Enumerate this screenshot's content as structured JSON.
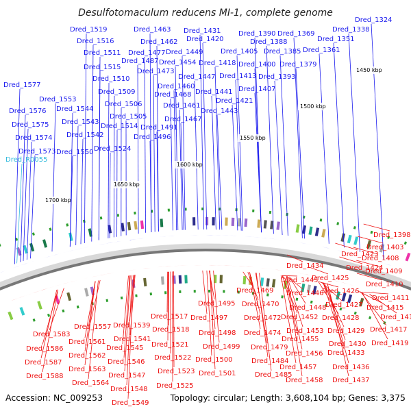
{
  "title": "Desulfotomaculum reducens MI-1, complete genome",
  "footer": {
    "accession": "Accession: NC_009253",
    "info": "Topology: circular; Length: 3,608,104 bp; Genes: 3,375"
  },
  "colors": {
    "forward": "#1a1aee",
    "reverse": "#ee1111",
    "rna": "#33bbdd",
    "backbone": "#777777",
    "tick": "#2e9e2e"
  },
  "kbp_ticks": [
    "1450 kbp",
    "1500 kbp",
    "1550 kbp",
    "1600 kbp",
    "1650 kbp",
    "1700 kbp"
  ],
  "top_labels": [
    [
      "Dred_1519",
      102,
      46
    ],
    [
      "Dred_1463",
      195,
      46
    ],
    [
      "Dred_1431",
      268,
      48
    ],
    [
      "Dred_1390",
      348,
      52
    ],
    [
      "Dred_1369",
      405,
      52
    ],
    [
      "Dred_1338",
      485,
      46
    ],
    [
      "Dred_1324",
      518,
      32
    ],
    [
      "Dred_1516",
      112,
      63
    ],
    [
      "Dred_1462",
      205,
      64
    ],
    [
      "Dred_1420",
      272,
      60
    ],
    [
      "Dred_1388",
      365,
      64
    ],
    [
      "Dred_1351",
      463,
      60
    ],
    [
      "Dred_1511",
      122,
      80
    ],
    [
      "Dred_1477",
      187,
      80
    ],
    [
      "Dred_1449",
      242,
      79
    ],
    [
      "Dred_1405",
      322,
      78
    ],
    [
      "Dred_1385",
      385,
      78
    ],
    [
      "Dred_1361",
      442,
      76
    ],
    [
      "Dred_1487",
      177,
      92
    ],
    [
      "Dred_1454",
      232,
      94
    ],
    [
      "Dred_1418",
      290,
      95
    ],
    [
      "Dred_1400",
      348,
      97
    ],
    [
      "Dred_1379",
      408,
      97
    ],
    [
      "Dred_1515",
      122,
      101
    ],
    [
      "Dred_1473",
      200,
      107
    ],
    [
      "Dred_1447",
      260,
      115
    ],
    [
      "Dred_1413",
      320,
      114
    ],
    [
      "Dred_1393",
      377,
      115
    ],
    [
      "Dred_1510",
      135,
      118
    ],
    [
      "Dred_1460",
      230,
      129
    ],
    [
      "Dred_1441",
      285,
      137
    ],
    [
      "Dred_1407",
      348,
      133
    ],
    [
      "Dred_1577",
      5,
      127
    ],
    [
      "Dred_1509",
      143,
      137
    ],
    [
      "Dred_1468",
      225,
      141
    ],
    [
      "Dred_1421",
      315,
      150
    ],
    [
      "Dred_1553",
      57,
      148
    ],
    [
      "Dred_1506",
      153,
      155
    ],
    [
      "Dred_1461",
      238,
      157
    ],
    [
      "Dred_1443",
      293,
      165
    ],
    [
      "Dred_1576",
      13,
      165
    ],
    [
      "Dred_1544",
      82,
      162
    ],
    [
      "Dred_1505",
      160,
      173
    ],
    [
      "Dred_1467",
      240,
      177
    ],
    [
      "Dred_1575",
      17,
      185
    ],
    [
      "Dred_1543",
      90,
      181
    ],
    [
      "Dred_1514",
      147,
      187
    ],
    [
      "Dred_1491",
      205,
      189
    ],
    [
      "Dred_1574",
      22,
      204
    ],
    [
      "Dred_1542",
      97,
      200
    ],
    [
      "Dred_1496",
      195,
      203
    ],
    [
      "Dred_1573",
      27,
      224
    ],
    [
      "Dred_1550",
      82,
      225
    ],
    [
      "Dred_1524",
      137,
      220
    ]
  ],
  "rna_label": [
    "Dred_R0055",
    8,
    236
  ],
  "bottom_labels": [
    [
      "Dred_1398",
      545,
      346
    ],
    [
      "Dred_1403",
      535,
      364
    ],
    [
      "Dred_1423",
      498,
      374
    ],
    [
      "Dred_1408",
      528,
      380
    ],
    [
      "Dred_1434",
      418,
      391
    ],
    [
      "Dred_1424",
      505,
      394
    ],
    [
      "Dred_1409",
      533,
      399
    ],
    [
      "Dred_1425",
      455,
      409
    ],
    [
      "Dred_1445",
      410,
      412
    ],
    [
      "Dred_1410",
      534,
      418
    ],
    [
      "Dred_1469",
      345,
      427
    ],
    [
      "Dred_1446",
      418,
      431
    ],
    [
      "Dred_1426",
      470,
      428
    ],
    [
      "Dred_1411",
      543,
      438
    ],
    [
      "Dred_1495",
      289,
      446
    ],
    [
      "Dred_1470",
      353,
      447
    ],
    [
      "Dred_1448",
      422,
      452
    ],
    [
      "Dred_1427",
      475,
      448
    ],
    [
      "Dred_1415",
      535,
      452
    ],
    [
      "Dred_1517",
      220,
      465
    ],
    [
      "Dred_1497",
      278,
      467
    ],
    [
      "Dred_1472",
      356,
      467
    ],
    [
      "Dred_1452",
      410,
      466
    ],
    [
      "Dred_1428",
      470,
      467
    ],
    [
      "Dred_1416",
      555,
      466
    ],
    [
      "Dred_1539",
      165,
      478
    ],
    [
      "Dred_1557",
      108,
      480
    ],
    [
      "Dred_1518",
      222,
      484
    ],
    [
      "Dred_1474",
      356,
      489
    ],
    [
      "Dred_1453",
      418,
      486
    ],
    [
      "Dred_1429",
      478,
      486
    ],
    [
      "Dred_1417",
      540,
      484
    ],
    [
      "Dred_1583",
      48,
      491
    ],
    [
      "Dred_1498",
      290,
      489
    ],
    [
      "Dred_1541",
      166,
      498
    ],
    [
      "Dred_1561",
      100,
      502
    ],
    [
      "Dred_1521",
      221,
      506
    ],
    [
      "Dred_1455",
      411,
      498
    ],
    [
      "Dred_1430",
      480,
      505
    ],
    [
      "Dred_1419",
      542,
      504
    ],
    [
      "Dred_1586",
      38,
      512
    ],
    [
      "Dred_1499",
      296,
      509
    ],
    [
      "Dred_1479",
      366,
      510
    ],
    [
      "Dred_1545",
      155,
      511
    ],
    [
      "Dred_1456",
      417,
      519
    ],
    [
      "Dred_1433",
      478,
      518
    ],
    [
      "Dred_1587",
      36,
      532
    ],
    [
      "Dred_1562",
      100,
      522
    ],
    [
      "Dred_1522",
      225,
      525
    ],
    [
      "Dred_1500",
      285,
      528
    ],
    [
      "Dred_1484",
      367,
      530
    ],
    [
      "Dred_1546",
      157,
      531
    ],
    [
      "Dred_1563",
      100,
      542
    ],
    [
      "Dred_1523",
      230,
      545
    ],
    [
      "Dred_1457",
      408,
      539
    ],
    [
      "Dred_1436",
      485,
      539
    ],
    [
      "Dred_1588",
      38,
      552
    ],
    [
      "Dred_1547",
      158,
      551
    ],
    [
      "Dred_1501",
      290,
      548
    ],
    [
      "Dred_1485",
      372,
      550
    ],
    [
      "Dred_1564",
      105,
      562
    ],
    [
      "Dred_1525",
      228,
      566
    ],
    [
      "Dred_1458",
      417,
      558
    ],
    [
      "Dred_1437",
      485,
      558
    ],
    [
      "Dred_1548",
      161,
      571
    ],
    [
      "Dred_1549",
      163,
      591
    ]
  ]
}
